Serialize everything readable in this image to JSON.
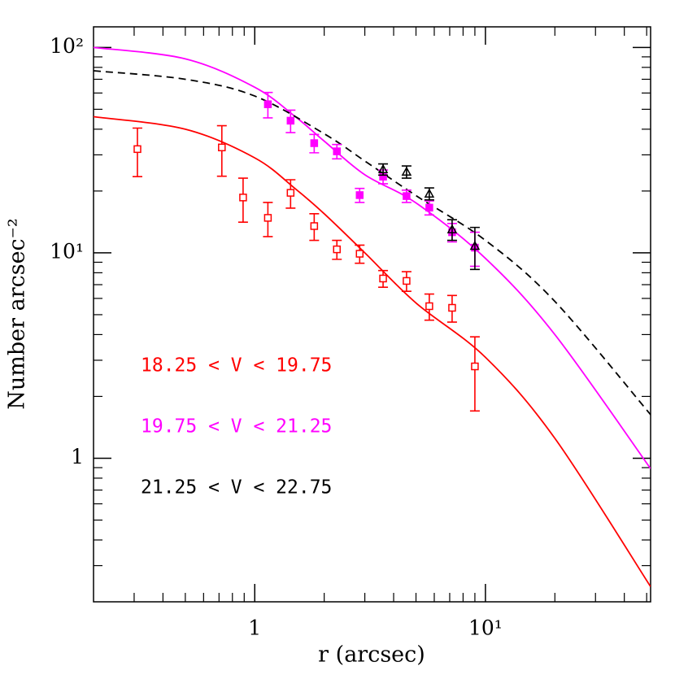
{
  "chart_data": {
    "type": "scatter",
    "xlabel": "r (arcsec)",
    "ylabel": "Number arcsec⁻²",
    "xscale": "log",
    "yscale": "log",
    "xlim": [
      0.2,
      52
    ],
    "ylim": [
      0.2,
      126
    ],
    "xticks": [
      1,
      {
        "value": 10,
        "label": "10¹"
      }
    ],
    "yticks": [
      1,
      {
        "value": 10,
        "label": "10¹"
      },
      {
        "value": 100,
        "label": "10²"
      }
    ],
    "xminorticks": [
      0.3,
      0.4,
      0.5,
      0.6,
      0.7,
      0.8,
      0.9,
      2,
      3,
      4,
      5,
      6,
      7,
      8,
      9,
      20,
      30,
      40,
      50
    ],
    "yminorticks": [
      0.3,
      0.4,
      0.5,
      0.6,
      0.7,
      0.8,
      0.9,
      2,
      3,
      4,
      5,
      6,
      7,
      8,
      9,
      20,
      30,
      40,
      50,
      60,
      70,
      80,
      90
    ],
    "series": [
      {
        "name": "18.25 < V < 19.75",
        "color": "#ff0000",
        "marker": "square-open",
        "x": [
          0.31,
          0.72,
          0.89,
          1.14,
          1.43,
          1.81,
          2.27,
          2.85,
          3.6,
          4.55,
          5.71,
          7.17,
          9.0
        ],
        "values": [
          32,
          32.6,
          18.6,
          14.8,
          19.6,
          13.5,
          10.4,
          9.9,
          7.5,
          7.3,
          5.5,
          5.4,
          2.8
        ],
        "errors": [
          8.5,
          9,
          4.5,
          2.8,
          3.1,
          2,
          1.1,
          1,
          0.7,
          0.8,
          0.8,
          0.8,
          1.1
        ]
      },
      {
        "name": "19.75 < V < 21.25",
        "color": "#ff00ff",
        "marker": "square",
        "x": [
          1.14,
          1.43,
          1.81,
          2.27,
          2.85,
          3.6,
          4.55,
          5.71,
          7.17,
          9.0
        ],
        "values": [
          52.9,
          44,
          34.2,
          31.2,
          19.1,
          23.5,
          18.9,
          16.6,
          12.6,
          10.6
        ],
        "errors": [
          7.5,
          5.5,
          3.5,
          2.5,
          1.5,
          1.8,
          1.3,
          1.3,
          1.3,
          2
        ]
      },
      {
        "name": "21.25 < V < 22.75",
        "color": "#000000",
        "marker": "triangle-open",
        "x": [
          3.6,
          4.55,
          5.71,
          7.17,
          9.0
        ],
        "values": [
          25.5,
          24.8,
          19.4,
          13,
          10.8
        ],
        "errors": [
          1.6,
          1.7,
          1.3,
          1.5,
          2.5
        ]
      }
    ],
    "curves": [
      {
        "color": "#ff0000",
        "dashed": false,
        "x": [
          0.2,
          0.5,
          1,
          1.5,
          2,
          3,
          5,
          10,
          20,
          52
        ],
        "values": [
          46,
          40,
          29,
          20.5,
          15.5,
          10,
          5.7,
          3.1,
          1.25,
          0.237
        ]
      },
      {
        "color": "#ff00ff",
        "dashed": false,
        "x": [
          0.2,
          0.5,
          1,
          1.5,
          2,
          3,
          5,
          10,
          20,
          52
        ],
        "values": [
          100,
          88,
          64,
          46,
          35,
          24,
          17.5,
          9.4,
          4,
          0.89
        ]
      },
      {
        "color": "#000000",
        "dashed": true,
        "x": [
          0.2,
          0.5,
          1,
          2,
          3,
          5,
          10,
          20,
          52
        ],
        "values": [
          77,
          70,
          58,
          38,
          28,
          19,
          11.5,
          5.8,
          1.63
        ]
      }
    ]
  }
}
